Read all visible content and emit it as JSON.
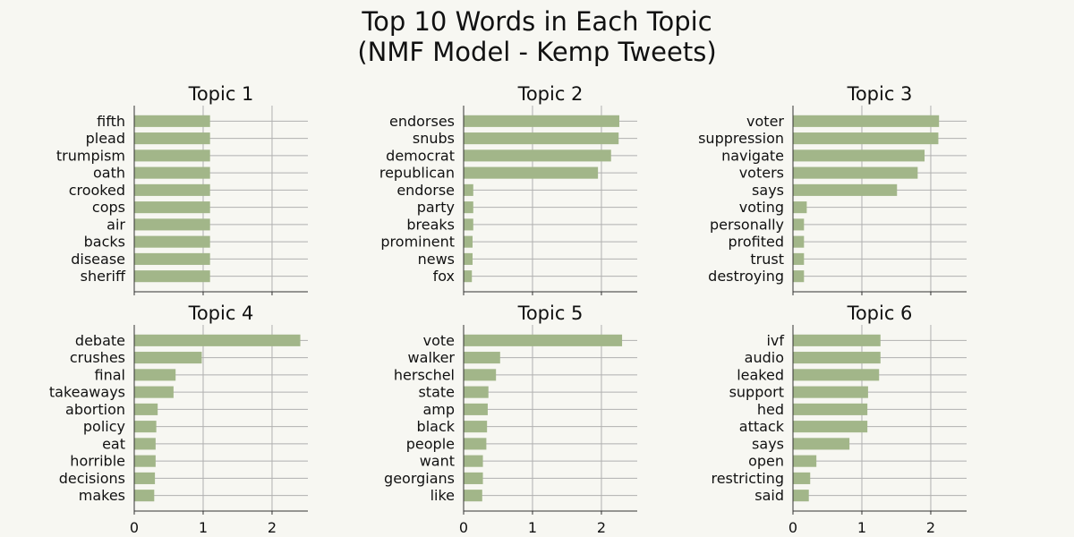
{
  "chart_data": [
    {
      "type": "bar",
      "title": "Top 10 Words in Each Topic\n(NMF Model - Kemp Tweets)",
      "panels": [
        {
          "title": "Topic 1",
          "categories": [
            "fifth",
            "plead",
            "trumpism",
            "oath",
            "crooked",
            "cops",
            "air",
            "backs",
            "disease",
            "sheriff"
          ],
          "values": [
            1.1,
            1.1,
            1.1,
            1.1,
            1.1,
            1.1,
            1.1,
            1.1,
            1.1,
            1.1
          ]
        },
        {
          "title": "Topic 2",
          "categories": [
            "endorses",
            "snubs",
            "democrat",
            "republican",
            "endorse",
            "party",
            "breaks",
            "prominent",
            "news",
            "fox"
          ],
          "values": [
            2.26,
            2.25,
            2.14,
            1.95,
            0.14,
            0.14,
            0.14,
            0.13,
            0.13,
            0.12
          ]
        },
        {
          "title": "Topic 3",
          "categories": [
            "voter",
            "suppression",
            "navigate",
            "voters",
            "says",
            "voting",
            "personally",
            "profited",
            "trust",
            "destroying"
          ],
          "values": [
            2.12,
            2.11,
            1.91,
            1.81,
            1.51,
            0.2,
            0.16,
            0.16,
            0.16,
            0.16
          ]
        },
        {
          "title": "Topic 4",
          "categories": [
            "debate",
            "crushes",
            "final",
            "takeaways",
            "abortion",
            "policy",
            "eat",
            "horrible",
            "decisions",
            "makes"
          ],
          "values": [
            2.41,
            0.98,
            0.6,
            0.57,
            0.34,
            0.32,
            0.31,
            0.31,
            0.3,
            0.29
          ]
        },
        {
          "title": "Topic 5",
          "categories": [
            "vote",
            "walker",
            "herschel",
            "state",
            "amp",
            "black",
            "people",
            "want",
            "georgians",
            "like"
          ],
          "values": [
            2.3,
            0.53,
            0.47,
            0.36,
            0.35,
            0.34,
            0.33,
            0.28,
            0.28,
            0.27
          ]
        },
        {
          "title": "Topic 6",
          "categories": [
            "ivf",
            "audio",
            "leaked",
            "support",
            "hed",
            "attack",
            "says",
            "open",
            "restricting",
            "said"
          ],
          "values": [
            1.27,
            1.27,
            1.25,
            1.09,
            1.08,
            1.08,
            0.82,
            0.34,
            0.25,
            0.23
          ]
        }
      ],
      "xlim": [
        0,
        2.52
      ],
      "xticks": [
        0,
        1,
        2
      ],
      "bar_color": "#a2b689",
      "grid": true
    }
  ]
}
